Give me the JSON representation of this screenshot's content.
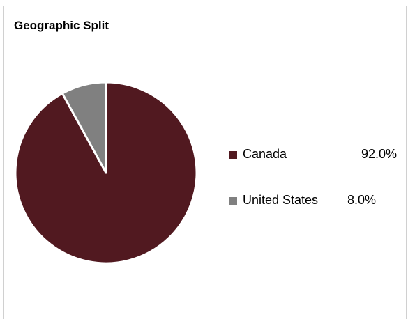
{
  "chart_data": {
    "type": "pie",
    "title": "Geographic Split",
    "slices": [
      {
        "label": "Canada",
        "value": 92.0,
        "value_label": "92.0%",
        "color": "#511920"
      },
      {
        "label": "United States",
        "value": 8.0,
        "value_label": "8.0%",
        "color": "#808080"
      }
    ],
    "start_angle_deg": 0,
    "direction": "clockwise",
    "slice_edge_color": "#ffffff",
    "legend_position": "right"
  }
}
